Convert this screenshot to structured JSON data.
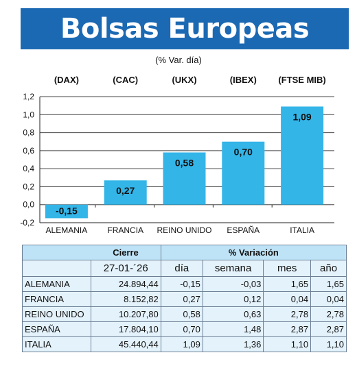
{
  "header": {
    "title": "Bolsas Europeas",
    "subtitle": "(% Var. día)"
  },
  "colors": {
    "bar": "#33b5e8",
    "banner": "#1b69b3",
    "table_header": "#bfe3f6",
    "table_body": "#e4f2fb"
  },
  "chart_data": {
    "type": "bar",
    "title": "Bolsas Europeas",
    "subtitle": "(% Var. día)",
    "categories": [
      "ALEMANIA",
      "FRANCIA",
      "REINO UNIDO",
      "ESPAÑA",
      "ITALIA"
    ],
    "index_labels": [
      "(DAX)",
      "(CAC)",
      "(UKX)",
      "(IBEX)",
      "(FTSE MIB)"
    ],
    "values": [
      -0.15,
      0.27,
      0.58,
      0.7,
      1.09
    ],
    "value_labels": [
      "-0,15",
      "0,27",
      "0,58",
      "0,70",
      "1,09"
    ],
    "ylim": [
      -0.2,
      1.2
    ],
    "yticks": [
      -0.2,
      0.0,
      0.2,
      0.4,
      0.6,
      0.8,
      1.0,
      1.2
    ],
    "ytick_labels": [
      "-0,2",
      "0,0",
      "0,2",
      "0,4",
      "0,6",
      "0,8",
      "1,0",
      "1,2"
    ],
    "grid": true,
    "legend": "none"
  },
  "table": {
    "group_headers": {
      "cierre": "Cierre",
      "variacion": "% Variación"
    },
    "columns": {
      "date": "27-01-´26",
      "dia": "día",
      "semana": "semana",
      "mes": "mes",
      "ano": "año"
    },
    "rows": [
      {
        "name": "ALEMANIA",
        "cierre": "24.894,44",
        "dia": "-0,15",
        "semana": "-0,03",
        "mes": "1,65",
        "ano": "1,65"
      },
      {
        "name": "FRANCIA",
        "cierre": "8.152,82",
        "dia": "0,27",
        "semana": "0,12",
        "mes": "0,04",
        "ano": "0,04"
      },
      {
        "name": "REINO UNIDO",
        "cierre": "10.207,80",
        "dia": "0,58",
        "semana": "0,63",
        "mes": "2,78",
        "ano": "2,78"
      },
      {
        "name": "ESPAÑA",
        "cierre": "17.804,10",
        "dia": "0,70",
        "semana": "1,48",
        "mes": "2,87",
        "ano": "2,87"
      },
      {
        "name": "ITALIA",
        "cierre": "45.440,44",
        "dia": "1,09",
        "semana": "1,36",
        "mes": "1,10",
        "ano": "1,10"
      }
    ]
  }
}
